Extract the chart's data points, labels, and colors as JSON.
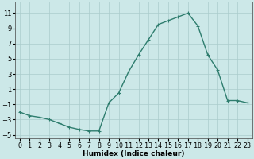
{
  "x": [
    0,
    1,
    2,
    3,
    4,
    5,
    6,
    7,
    8,
    9,
    10,
    11,
    12,
    13,
    14,
    15,
    16,
    17,
    18,
    19,
    20,
    21,
    22,
    23
  ],
  "y": [
    -2,
    -2.5,
    -2.7,
    -3,
    -3.5,
    -4,
    -4.3,
    -4.5,
    -4.5,
    -0.8,
    0.5,
    3.3,
    5.5,
    7.5,
    9.5,
    10.0,
    10.5,
    11.0,
    9.3,
    5.5,
    3.5,
    -0.5,
    -0.5,
    -0.8
  ],
  "line_color": "#2e7d6e",
  "marker": "+",
  "markersize": 3,
  "linewidth": 1.0,
  "bg_color": "#cce8e8",
  "grid_color": "#aacccc",
  "xlabel": "Humidex (Indice chaleur)",
  "xlim": [
    -0.5,
    23.5
  ],
  "ylim": [
    -5.5,
    12.5
  ],
  "yticks": [
    -5,
    -3,
    -1,
    1,
    3,
    5,
    7,
    9,
    11
  ],
  "xtick_labels": [
    "0",
    "1",
    "2",
    "3",
    "4",
    "5",
    "6",
    "7",
    "8",
    "9",
    "10",
    "11",
    "12",
    "13",
    "14",
    "15",
    "16",
    "17",
    "18",
    "19",
    "20",
    "21",
    "22",
    "23"
  ],
  "label_fontsize": 6.5,
  "tick_fontsize": 6
}
